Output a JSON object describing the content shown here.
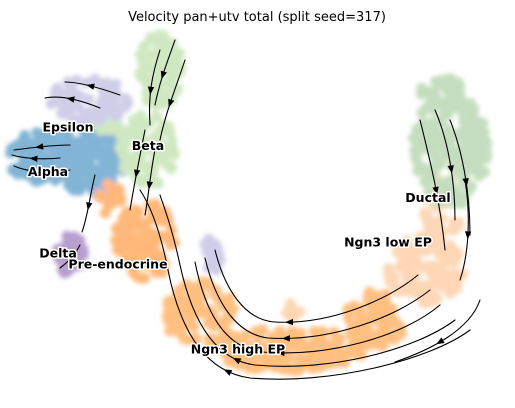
{
  "chart_data": {
    "type": "scatter",
    "title": "Velocity pan+utv total (split seed=317)",
    "xlabel": "",
    "ylabel": "",
    "grid": false,
    "legend": "on data",
    "clusters": [
      {
        "name": "Alpha",
        "color": "#1f77b4",
        "label_at": [
          0.08,
          0.6
        ]
      },
      {
        "name": "Beta",
        "color": "#aec7e8",
        "label_at": [
          0.28,
          0.67
        ]
      },
      {
        "name": "Delta",
        "color": "#6e4fa3",
        "label_at": [
          0.1,
          0.38
        ]
      },
      {
        "name": "Epsilon",
        "color": "#9b86c4",
        "label_at": [
          0.12,
          0.72
        ]
      },
      {
        "name": "Pre-endocrine",
        "color": "#ff7f0e",
        "label_at": [
          0.22,
          0.35
        ]
      },
      {
        "name": "Ngn3 high EP",
        "color": "#ff8c1a",
        "label_at": [
          0.46,
          0.12
        ]
      },
      {
        "name": "Ngn3 low EP",
        "color": "#fdbf88",
        "label_at": [
          0.76,
          0.41
        ]
      },
      {
        "name": "Ductal",
        "color": "#98c48a",
        "label_at": [
          0.84,
          0.53
        ]
      }
    ],
    "point_colors": {
      "Alpha": "#1f77b4",
      "Beta": "#a8d68f",
      "Delta": "#7b4fa8",
      "Epsilon": "#a9a6d6",
      "Pre-endocrine": "#ff7f0e",
      "Ngn3 high EP": "#ff8c1a",
      "Ngn3 low EP": "#fbb67a",
      "Ductal": "#95c38a"
    }
  }
}
